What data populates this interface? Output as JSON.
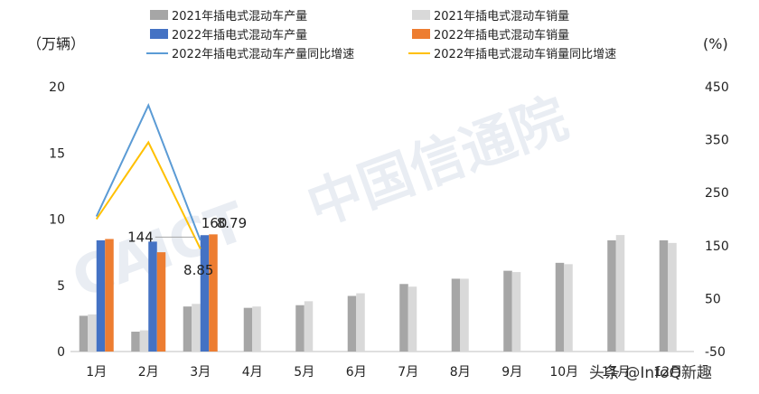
{
  "chart_data": {
    "type": "bar",
    "categories": [
      "1月",
      "2月",
      "3月",
      "4月",
      "5月",
      "6月",
      "7月",
      "8月",
      "9月",
      "10月",
      "11月",
      "12月"
    ],
    "left_axis": {
      "unit": "（万辆）",
      "ticks": [
        "0",
        "5",
        "10",
        "15",
        "20"
      ],
      "range": [
        0,
        20
      ]
    },
    "right_axis": {
      "unit": "(%)",
      "ticks": [
        "-50",
        "50",
        "150",
        "250",
        "350",
        "450"
      ],
      "range": [
        -50,
        450
      ]
    },
    "series": [
      {
        "name": "2021年插电式混动车产量",
        "kind": "bar",
        "color": "#a6a6a6",
        "values": [
          2.7,
          1.5,
          3.4,
          3.3,
          3.5,
          4.2,
          5.1,
          5.5,
          6.1,
          6.7,
          8.4,
          8.4
        ]
      },
      {
        "name": "2021年插电式混动车销量",
        "kind": "bar",
        "color": "#d9d9d9",
        "values": [
          2.8,
          1.6,
          3.6,
          3.4,
          3.8,
          4.4,
          4.9,
          5.5,
          6.0,
          6.6,
          8.8,
          8.2
        ]
      },
      {
        "name": "2022年插电式混动车产量",
        "kind": "bar",
        "color": "#4472c4",
        "values": [
          8.4,
          8.3,
          8.79,
          null,
          null,
          null,
          null,
          null,
          null,
          null,
          null,
          null
        ]
      },
      {
        "name": "2022年插电式混动车销量",
        "kind": "bar",
        "color": "#ed7d31",
        "values": [
          8.5,
          7.5,
          8.85,
          null,
          null,
          null,
          null,
          null,
          null,
          null,
          null,
          null
        ]
      },
      {
        "name": "2022年插电式混动车产量同比增速",
        "kind": "line",
        "axis": "right",
        "color": "#5b9bd5",
        "values": [
          205,
          415,
          160,
          null,
          null,
          null,
          null,
          null,
          null,
          null,
          null,
          null
        ]
      },
      {
        "name": "2022年插电式混动车销量同比增速",
        "kind": "line",
        "axis": "right",
        "color": "#ffc000",
        "values": [
          200,
          345,
          144,
          null,
          null,
          null,
          null,
          null,
          null,
          null,
          null,
          null
        ]
      }
    ],
    "annotations": [
      {
        "text": "144",
        "ref": "sales_growth_mar"
      },
      {
        "text": "160",
        "ref": "prod_growth_mar"
      },
      {
        "text": "8.79",
        "ref": "prod_2022_mar"
      },
      {
        "text": "8.85",
        "ref": "sales_2022_mar"
      }
    ],
    "legend_position": "top"
  },
  "watermark": {
    "logo_text": "CAICT",
    "cn_text": "中国信通院",
    "source_text": "头条 @InfoQ新趣"
  }
}
